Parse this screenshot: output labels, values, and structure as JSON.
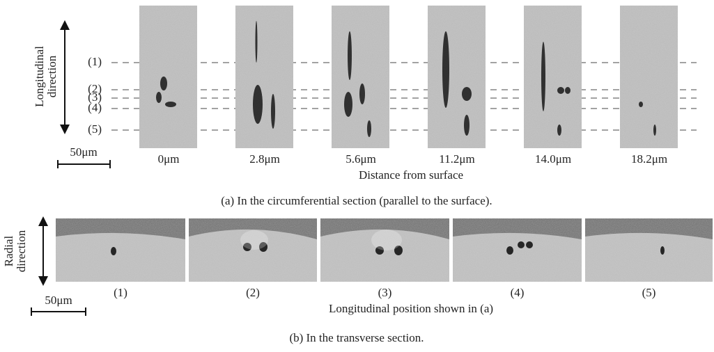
{
  "panel_a": {
    "axis_label": [
      "Longitudinal",
      "direction"
    ],
    "positions": [
      "(1)",
      "(2)",
      "(3)",
      "(4)",
      "(5)"
    ],
    "scale_bar": "50μm",
    "images": [
      "0μm",
      "2.8μm",
      "5.6μm",
      "11.2μm",
      "14.0μm",
      "18.2μm"
    ],
    "x_label": "Distance from surface",
    "caption": "(a) In the circumferential section (parallel to the surface)."
  },
  "panel_b": {
    "axis_label": [
      "Radial",
      "direction"
    ],
    "scale_bar": "50μm",
    "images": [
      "(1)",
      "(2)",
      "(3)",
      "(4)",
      "(5)"
    ],
    "x_label": "Longitudinal position shown in (a)",
    "caption": "(b) In the transverse section."
  }
}
